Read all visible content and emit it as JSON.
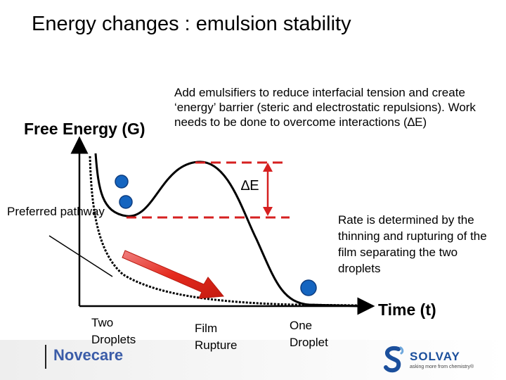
{
  "title": "Energy changes : emulsion stability",
  "axes": {
    "y_label": "Free Energy (G)",
    "x_label": "Time (t)"
  },
  "description": "Add emulsifiers to reduce interfacial tension and create ‘energy’ barrier (steric and electrostatic repulsions). Work needs to be done to overcome interactions (∆E)",
  "delta_e_label": "∆E",
  "preferred_pathway": "Preferred pathway",
  "rate_note": "Rate is determined by the thinning and rupturing of the film separating the two droplets",
  "stages": [
    "Two Droplets",
    "Film Rupture",
    "One Droplet"
  ],
  "footer": {
    "novecare": "Novecare",
    "solvay": "SOLVAY",
    "solvay_tagline": "asking more from chemistry®"
  },
  "colors": {
    "droplet": "#1565c0",
    "dashed_line": "#d62020",
    "arrow": "#e52b1e",
    "novecare": "#3b5ca8",
    "solvay": "#1b4f9c"
  }
}
